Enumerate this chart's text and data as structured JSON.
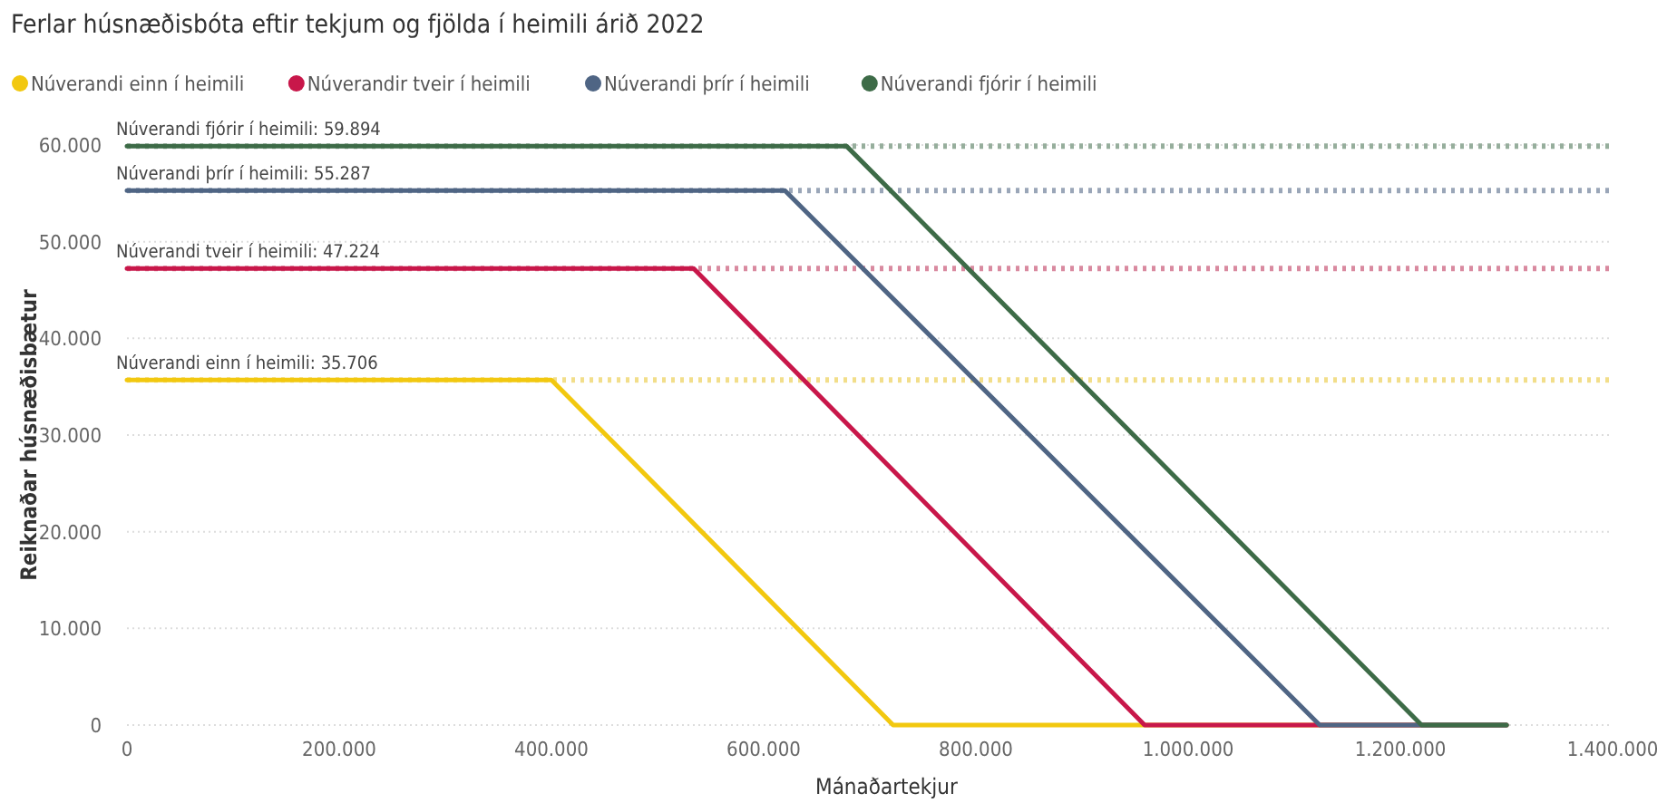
{
  "chart_data": {
    "type": "line",
    "title": "Ferlar húsnæðisbóta eftir tekjum og fjölda í heimili árið 2022",
    "xlabel": "Mánaðartekjur",
    "ylabel": "Reiknaðar húsnæðisbætur",
    "series": [
      {
        "name": "Núverandi einn í heimili",
        "color": "#f2c80f",
        "x": [
          0,
          400000,
          722000,
          1300000
        ],
        "values": [
          35706,
          35706,
          0,
          0
        ]
      },
      {
        "name": "Núverandir tveir í heimili",
        "color": "#c8174a",
        "x": [
          0,
          534000,
          959000,
          1300000
        ],
        "values": [
          47224,
          47224,
          0,
          0
        ]
      },
      {
        "name": "Núverandi þrír í heimili",
        "color": "#4f6584",
        "x": [
          0,
          620000,
          1124000,
          1300000
        ],
        "values": [
          55287,
          55287,
          0,
          0
        ]
      },
      {
        "name": "Núverandi fjórir í heimili",
        "color": "#3d6b47",
        "x": [
          0,
          678000,
          1220000,
          1300000
        ],
        "values": [
          59894,
          59894,
          0,
          0
        ]
      }
    ],
    "ref_lines": [
      {
        "axis": "y",
        "value": 35706,
        "label": "Núverandi einn í heimili: 35.706",
        "color": "#f2de8a",
        "line_style": "dotted"
      },
      {
        "axis": "y",
        "value": 47224,
        "label": "Núverandi tveir í heimili: 47.224",
        "color": "#d98aa0",
        "line_style": "dotted"
      },
      {
        "axis": "y",
        "value": 55287,
        "label": "Núverandi þrír í heimili: 55.287",
        "color": "#9aa6b8",
        "line_style": "dotted"
      },
      {
        "axis": "y",
        "value": 59894,
        "label": "Núverandi fjórir í heimili: 59.894",
        "color": "#96ae9c",
        "line_style": "dotted"
      }
    ],
    "xlim": [
      0,
      1400000
    ],
    "xticks": [
      {
        "value": 0,
        "label": "0"
      },
      {
        "value": 200000,
        "label": "200.000"
      },
      {
        "value": 400000,
        "label": "400.000"
      },
      {
        "value": 600000,
        "label": "600.000"
      },
      {
        "value": 800000,
        "label": "800.000"
      },
      {
        "value": 1000000,
        "label": "1.000.000"
      },
      {
        "value": 1200000,
        "label": "1.200.000"
      },
      {
        "value": 1400000,
        "label": "1.400.000"
      }
    ],
    "ylim": [
      0,
      60000
    ],
    "yticks": [
      {
        "value": 0,
        "label": "0"
      },
      {
        "value": 10000,
        "label": "10.000"
      },
      {
        "value": 20000,
        "label": "20.000"
      },
      {
        "value": 30000,
        "label": "30.000"
      },
      {
        "value": 40000,
        "label": "40.000"
      },
      {
        "value": 50000,
        "label": "50.000"
      },
      {
        "value": 60000,
        "label": "60.000"
      }
    ],
    "grid": "y",
    "legend": "top left",
    "marker": "none",
    "line_style": "solid"
  }
}
